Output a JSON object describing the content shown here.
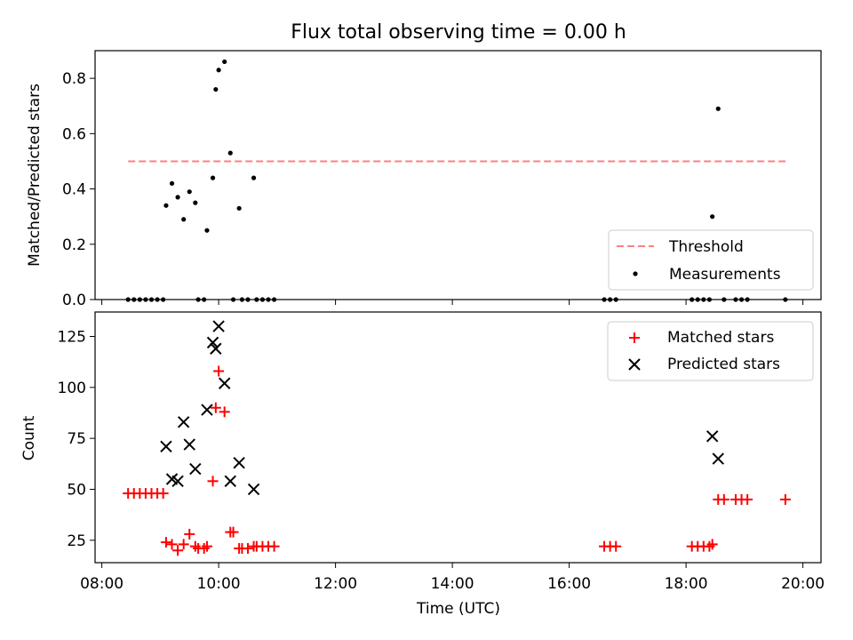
{
  "title": "Flux total observing time = 0.00 h",
  "chart_data": [
    {
      "type": "scatter",
      "ylabel": "Matched/Predicted stars",
      "xlabel": "",
      "xlim": [
        "08:00",
        "20:00"
      ],
      "ylim": [
        0,
        0.9
      ],
      "yticks": [
        0.0,
        0.2,
        0.4,
        0.6,
        0.8
      ],
      "ytick_labels": [
        "0.0",
        "0.2",
        "0.4",
        "0.6",
        "0.8"
      ],
      "legend_position": "lower-right",
      "threshold": {
        "name": "Threshold",
        "value": 0.5,
        "x_start": "08:27",
        "x_end": "19:44",
        "color": "#ff7f7f",
        "style": "dashed"
      },
      "series": [
        {
          "name": "Measurements",
          "color": "#000000",
          "marker": "dot",
          "points": [
            [
              "08:27",
              0
            ],
            [
              "08:33",
              0
            ],
            [
              "08:39",
              0
            ],
            [
              "08:45",
              0
            ],
            [
              "08:51",
              0
            ],
            [
              "08:57",
              0
            ],
            [
              "09:03",
              0
            ],
            [
              "09:06",
              0.34
            ],
            [
              "09:12",
              0.42
            ],
            [
              "09:18",
              0.37
            ],
            [
              "09:24",
              0.29
            ],
            [
              "09:30",
              0.39
            ],
            [
              "09:36",
              0.35
            ],
            [
              "09:39",
              0
            ],
            [
              "09:45",
              0
            ],
            [
              "09:48",
              0.25
            ],
            [
              "09:54",
              0.44
            ],
            [
              "09:57",
              0.76
            ],
            [
              "10:00",
              0.83
            ],
            [
              "10:06",
              0.86
            ],
            [
              "10:12",
              0.53
            ],
            [
              "10:15",
              0
            ],
            [
              "10:21",
              0.33
            ],
            [
              "10:24",
              0
            ],
            [
              "10:30",
              0
            ],
            [
              "10:36",
              0.44
            ],
            [
              "10:39",
              0
            ],
            [
              "10:45",
              0
            ],
            [
              "10:51",
              0
            ],
            [
              "10:57",
              0
            ],
            [
              "16:36",
              0
            ],
            [
              "16:42",
              0
            ],
            [
              "16:48",
              0
            ],
            [
              "18:06",
              0
            ],
            [
              "18:12",
              0
            ],
            [
              "18:18",
              0
            ],
            [
              "18:24",
              0
            ],
            [
              "18:27",
              0.3
            ],
            [
              "18:33",
              0.69
            ],
            [
              "18:39",
              0
            ],
            [
              "18:51",
              0
            ],
            [
              "18:57",
              0
            ],
            [
              "19:03",
              0
            ],
            [
              "19:42",
              0
            ]
          ]
        }
      ]
    },
    {
      "type": "scatter",
      "ylabel": "Count",
      "xlabel": "Time (UTC)",
      "xlim": [
        "08:00",
        "20:00"
      ],
      "xticks": [
        "08:00",
        "10:00",
        "12:00",
        "14:00",
        "16:00",
        "18:00",
        "20:00"
      ],
      "ylim": [
        14,
        137
      ],
      "yticks": [
        25,
        50,
        75,
        100,
        125
      ],
      "ytick_labels": [
        "25",
        "50",
        "75",
        "100",
        "125"
      ],
      "legend_position": "upper-right",
      "series": [
        {
          "name": "Matched stars",
          "color": "#ff0000",
          "marker": "plus",
          "points": [
            [
              "08:27",
              48
            ],
            [
              "08:33",
              48
            ],
            [
              "08:39",
              48
            ],
            [
              "08:45",
              48
            ],
            [
              "08:51",
              48
            ],
            [
              "08:57",
              48
            ],
            [
              "09:03",
              48
            ],
            [
              "09:06",
              24
            ],
            [
              "09:12",
              23
            ],
            [
              "09:18",
              20
            ],
            [
              "09:24",
              23
            ],
            [
              "09:30",
              28
            ],
            [
              "09:36",
              22
            ],
            [
              "09:39",
              21
            ],
            [
              "09:45",
              21
            ],
            [
              "09:48",
              22
            ],
            [
              "09:54",
              54
            ],
            [
              "09:57",
              90
            ],
            [
              "10:00",
              108
            ],
            [
              "10:06",
              88
            ],
            [
              "10:12",
              29
            ],
            [
              "10:15",
              29
            ],
            [
              "10:21",
              21
            ],
            [
              "10:24",
              21
            ],
            [
              "10:30",
              21
            ],
            [
              "10:36",
              22
            ],
            [
              "10:39",
              22
            ],
            [
              "10:45",
              22
            ],
            [
              "10:51",
              22
            ],
            [
              "10:57",
              22
            ],
            [
              "16:36",
              22
            ],
            [
              "16:42",
              22
            ],
            [
              "16:48",
              22
            ],
            [
              "18:06",
              22
            ],
            [
              "18:12",
              22
            ],
            [
              "18:18",
              22
            ],
            [
              "18:24",
              22
            ],
            [
              "18:27",
              23
            ],
            [
              "18:33",
              45
            ],
            [
              "18:39",
              45
            ],
            [
              "18:51",
              45
            ],
            [
              "18:57",
              45
            ],
            [
              "19:03",
              45
            ],
            [
              "19:42",
              45
            ]
          ]
        },
        {
          "name": "Predicted stars",
          "color": "#000000",
          "marker": "x",
          "points": [
            [
              "09:06",
              71
            ],
            [
              "09:12",
              55
            ],
            [
              "09:18",
              54
            ],
            [
              "09:24",
              83
            ],
            [
              "09:30",
              72
            ],
            [
              "09:36",
              60
            ],
            [
              "09:48",
              89
            ],
            [
              "09:54",
              122
            ],
            [
              "09:57",
              119
            ],
            [
              "10:00",
              130
            ],
            [
              "10:06",
              102
            ],
            [
              "10:12",
              54
            ],
            [
              "10:21",
              63
            ],
            [
              "10:36",
              50
            ],
            [
              "18:27",
              76
            ],
            [
              "18:33",
              65
            ]
          ]
        }
      ]
    }
  ]
}
